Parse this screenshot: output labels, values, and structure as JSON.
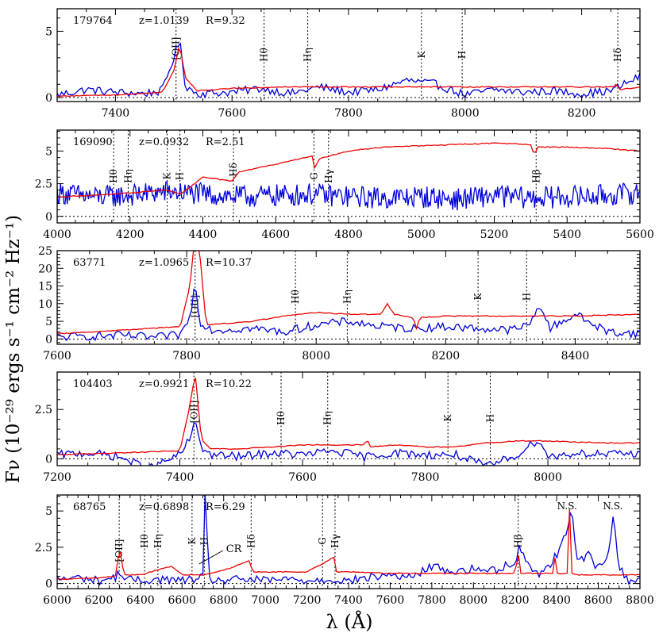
{
  "colors": {
    "observed": "#0000dd",
    "model": "#ee0000",
    "axes": "#000000"
  },
  "ylabel": "Fν (10⁻²⁹ ergs s⁻¹ cm⁻² Hz⁻¹)",
  "xlabel": "λ (Å)",
  "chart_data": [
    {
      "type": "line",
      "header": {
        "id": "179764",
        "z": "z=1.0139",
        "r": "R=9.32"
      },
      "xlim": [
        7300,
        8300
      ],
      "ylim": [
        -0.3,
        6.7
      ],
      "xticks": [
        7400,
        7600,
        7800,
        8000,
        8200
      ],
      "yticks": [
        0,
        5
      ],
      "yrange_note": "",
      "series": [
        {
          "color_key": "observed",
          "shape": "noisy",
          "x": [
            7300,
            7350,
            7400,
            7450,
            7480,
            7500,
            7510,
            7520,
            7540,
            7600,
            7650,
            7700,
            7750,
            7800,
            7850,
            7900,
            7950,
            8000,
            8050,
            8100,
            8150,
            8200,
            8250,
            8300
          ],
          "y": [
            0.2,
            0.6,
            0.4,
            0.3,
            0.5,
            3.0,
            4.3,
            0.9,
            0.3,
            0.4,
            0.7,
            0.3,
            0.8,
            0.4,
            0.6,
            1.3,
            1.0,
            0.2,
            0.6,
            0.4,
            0.5,
            0.3,
            0.5,
            1.6
          ]
        },
        {
          "color_key": "model",
          "shape": "smooth",
          "x": [
            7300,
            7400,
            7480,
            7500,
            7510,
            7520,
            7540,
            7600,
            7700,
            7800,
            7900,
            8000,
            8100,
            8200,
            8255,
            8260,
            8265,
            8300
          ],
          "y": [
            0.1,
            0.2,
            0.4,
            2.0,
            4.0,
            1.5,
            0.5,
            0.7,
            0.8,
            0.8,
            0.8,
            0.8,
            0.8,
            0.8,
            0.8,
            1.1,
            0.6,
            0.8
          ]
        }
      ],
      "lines": [
        {
          "label": "[OII]",
          "x": 7504,
          "pos": "high"
        },
        {
          "label": "Hθ",
          "x": 7655
        },
        {
          "label": "Hη",
          "x": 7730
        },
        {
          "label": "K",
          "x": 7925
        },
        {
          "label": "H",
          "x": 7995
        },
        {
          "label": "Hδ",
          "x": 8262
        }
      ]
    },
    {
      "type": "line",
      "header": {
        "id": "169090",
        "z": "z=0.0932",
        "r": "R=2.51"
      },
      "xlim": [
        4000,
        5600
      ],
      "ylim": [
        -0.5,
        6.6
      ],
      "xticks": [
        4000,
        4200,
        4400,
        4600,
        4800,
        5000,
        5200,
        5400,
        5600
      ],
      "yticks": [
        0,
        2.5,
        5
      ],
      "series": [
        {
          "color_key": "observed",
          "shape": "very-noisy",
          "x": [
            4000,
            4100,
            4200,
            4300,
            4400,
            4500,
            4600,
            4700,
            4800,
            4900,
            5000,
            5100,
            5200,
            5300,
            5400,
            5500,
            5600
          ],
          "y": [
            1.8,
            1.5,
            1.6,
            1.9,
            1.7,
            1.5,
            1.6,
            1.7,
            1.5,
            1.4,
            1.5,
            1.3,
            1.6,
            1.4,
            1.5,
            1.6,
            1.8
          ]
        },
        {
          "color_key": "model",
          "shape": "smooth",
          "x": [
            4000,
            4100,
            4200,
            4300,
            4340,
            4400,
            4480,
            4500,
            4600,
            4700,
            4705,
            4720,
            4800,
            4900,
            5000,
            5100,
            5200,
            5300,
            5310,
            5320,
            5400,
            5500,
            5600
          ],
          "y": [
            1.5,
            1.6,
            1.8,
            2.0,
            1.7,
            3.0,
            2.7,
            3.4,
            4.0,
            4.6,
            3.6,
            4.4,
            5.0,
            5.3,
            5.4,
            5.5,
            5.6,
            5.5,
            4.7,
            5.3,
            5.3,
            5.2,
            5.0
          ]
        }
      ],
      "lines": [
        {
          "label": "Hθ",
          "x": 4155
        },
        {
          "label": "Hη",
          "x": 4195
        },
        {
          "label": "K",
          "x": 4302
        },
        {
          "label": "H",
          "x": 4337
        },
        {
          "label": "Hδ",
          "x": 4484,
          "pos": "high"
        },
        {
          "label": "G",
          "x": 4705
        },
        {
          "label": "Hγ",
          "x": 4745
        },
        {
          "label": "Hβ",
          "x": 5315
        }
      ]
    },
    {
      "type": "line",
      "header": {
        "id": "63771",
        "z": "z=1.0965",
        "r": "R=10.37"
      },
      "xlim": [
        7600,
        8500
      ],
      "ylim": [
        -1.5,
        25
      ],
      "xticks": [
        7600,
        7800,
        8000,
        8200,
        8400
      ],
      "yticks": [
        0,
        5,
        10,
        15,
        20,
        25
      ],
      "series": [
        {
          "color_key": "observed",
          "shape": "noisy",
          "x": [
            7600,
            7650,
            7700,
            7750,
            7790,
            7805,
            7813,
            7820,
            7840,
            7900,
            7950,
            8000,
            8050,
            8100,
            8150,
            8200,
            8250,
            8300,
            8330,
            8345,
            8360,
            8400,
            8450,
            8500
          ],
          "y": [
            0.5,
            0.8,
            1.0,
            0.4,
            1.2,
            6.0,
            16.0,
            5.0,
            2.5,
            3.0,
            2.0,
            4.0,
            5.0,
            3.5,
            3.0,
            3.5,
            3.0,
            2.5,
            4.0,
            10.0,
            3.0,
            7.0,
            2.0,
            1.5
          ]
        },
        {
          "color_key": "model",
          "shape": "smooth",
          "x": [
            7600,
            7700,
            7790,
            7805,
            7813,
            7820,
            7830,
            7900,
            7970,
            8000,
            8050,
            8100,
            8110,
            8120,
            8150,
            8155,
            8160,
            8200,
            8300,
            8400,
            8500
          ],
          "y": [
            1.5,
            2.5,
            3.5,
            15.0,
            30.0,
            25.0,
            4.0,
            5.0,
            7.0,
            7.5,
            7.0,
            7.0,
            10.0,
            7.0,
            6.0,
            3.0,
            6.0,
            6.5,
            6.5,
            6.5,
            7.0
          ]
        }
      ],
      "lines": [
        {
          "label": "[OII]",
          "x": 7813,
          "pos": "low"
        },
        {
          "label": "Hθ",
          "x": 7968
        },
        {
          "label": "Hη",
          "x": 8048
        },
        {
          "label": "K",
          "x": 8250
        },
        {
          "label": "H",
          "x": 8325
        }
      ]
    },
    {
      "type": "line",
      "header": {
        "id": "104403",
        "z": "z=0.9921",
        "r": "R=10.22"
      },
      "xlim": [
        7200,
        8150
      ],
      "ylim": [
        -0.35,
        4.4
      ],
      "xticks": [
        7200,
        7400,
        7600,
        7800,
        8000
      ],
      "yticks": [
        0,
        2.5
      ],
      "series": [
        {
          "color_key": "observed",
          "shape": "noisy",
          "x": [
            7200,
            7250,
            7300,
            7350,
            7400,
            7420,
            7425,
            7435,
            7450,
            7500,
            7550,
            7600,
            7650,
            7700,
            7750,
            7800,
            7850,
            7900,
            7950,
            7985,
            8000,
            8050,
            8100,
            8150
          ],
          "y": [
            0.2,
            0.3,
            0.1,
            -0.5,
            0.2,
            1.2,
            2.0,
            0.6,
            0.2,
            0.1,
            0.3,
            0.2,
            0.4,
            0.1,
            0.3,
            0.2,
            0.2,
            -0.4,
            0.2,
            1.0,
            0.1,
            0.3,
            0.2,
            0.3
          ]
        },
        {
          "color_key": "model",
          "shape": "smooth",
          "x": [
            7200,
            7300,
            7400,
            7415,
            7425,
            7435,
            7450,
            7500,
            7600,
            7700,
            7705,
            7710,
            7750,
            7800,
            7850,
            7900,
            7950,
            8000,
            8100,
            8150
          ],
          "y": [
            0.2,
            0.3,
            0.4,
            2.5,
            4.3,
            1.0,
            0.5,
            0.5,
            0.7,
            0.7,
            1.0,
            0.6,
            0.7,
            0.6,
            0.6,
            0.8,
            0.9,
            0.9,
            0.8,
            0.8
          ]
        }
      ],
      "lines": [
        {
          "label": "[OII]",
          "x": 7423,
          "pos": "high"
        },
        {
          "label": "Hθ",
          "x": 7565
        },
        {
          "label": "Hη",
          "x": 7641
        },
        {
          "label": "K",
          "x": 7837
        },
        {
          "label": "H",
          "x": 7906
        }
      ]
    },
    {
      "type": "line",
      "header": {
        "id": "68765",
        "z": "z=0.6898",
        "r": "R=6.29"
      },
      "xlim": [
        6000,
        8800
      ],
      "ylim": [
        -0.35,
        6.1
      ],
      "xticks": [
        6000,
        6200,
        6400,
        6600,
        6800,
        7000,
        7200,
        7400,
        7600,
        7800,
        8000,
        8200,
        8400,
        8600,
        8800
      ],
      "yticks": [
        0,
        2.5,
        5
      ],
      "series": [
        {
          "color_key": "observed",
          "shape": "noisy",
          "x": [
            6000,
            6100,
            6200,
            6280,
            6300,
            6320,
            6400,
            6500,
            6600,
            6700,
            6715,
            6725,
            6800,
            6900,
            7000,
            7100,
            7200,
            7300,
            7400,
            7500,
            7600,
            7700,
            7800,
            7900,
            8000,
            8100,
            8200,
            8220,
            8300,
            8350,
            8400,
            8450,
            8470,
            8500,
            8550,
            8600,
            8650,
            8670,
            8700,
            8750,
            8800
          ],
          "y": [
            0.3,
            0.4,
            0.2,
            0.4,
            0.9,
            0.3,
            0.2,
            0.3,
            0.2,
            0.4,
            8.0,
            0.3,
            0.2,
            0.3,
            0.2,
            0.3,
            0.2,
            0.3,
            0.2,
            0.4,
            0.6,
            0.4,
            1.2,
            0.8,
            1.0,
            0.9,
            1.5,
            2.5,
            0.6,
            1.0,
            2.0,
            3.5,
            5.5,
            1.5,
            2.0,
            1.0,
            2.0,
            5.0,
            1.0,
            0.2,
            0.4
          ]
        },
        {
          "color_key": "model",
          "shape": "smooth",
          "x": [
            6000,
            6200,
            6280,
            6300,
            6320,
            6400,
            6550,
            6600,
            6700,
            6800,
            6930,
            6935,
            7000,
            7200,
            7330,
            7335,
            7400,
            7600,
            7800,
            8000,
            8200,
            8215,
            8225,
            8300,
            8380,
            8390,
            8400,
            8450,
            8460,
            8470,
            8500,
            8800
          ],
          "y": [
            0.3,
            0.4,
            0.5,
            2.5,
            0.6,
            0.6,
            1.2,
            0.6,
            0.6,
            0.9,
            1.6,
            0.8,
            0.8,
            0.8,
            1.8,
            0.8,
            0.8,
            0.7,
            0.7,
            0.7,
            0.7,
            2.2,
            0.7,
            0.7,
            0.7,
            2.0,
            0.7,
            0.7,
            6.0,
            0.7,
            0.6,
            0.6
          ]
        }
      ],
      "lines": [
        {
          "label": "[OII]",
          "x": 6298,
          "pos": "low"
        },
        {
          "label": "Hθ",
          "x": 6420
        },
        {
          "label": "Hη",
          "x": 6484
        },
        {
          "label": "K",
          "x": 6648
        },
        {
          "label": "H",
          "x": 6707
        },
        {
          "label": "Hδ",
          "x": 6932
        },
        {
          "label": "G",
          "x": 7275
        },
        {
          "label": "Hγ",
          "x": 7335
        },
        {
          "label": "Hβ",
          "x": 8215
        }
      ],
      "annotations": [
        {
          "text": "CR",
          "x": 6720
        },
        {
          "text": "N.S.",
          "x": 8450
        },
        {
          "text": "N.S.",
          "x": 8670
        }
      ]
    }
  ]
}
